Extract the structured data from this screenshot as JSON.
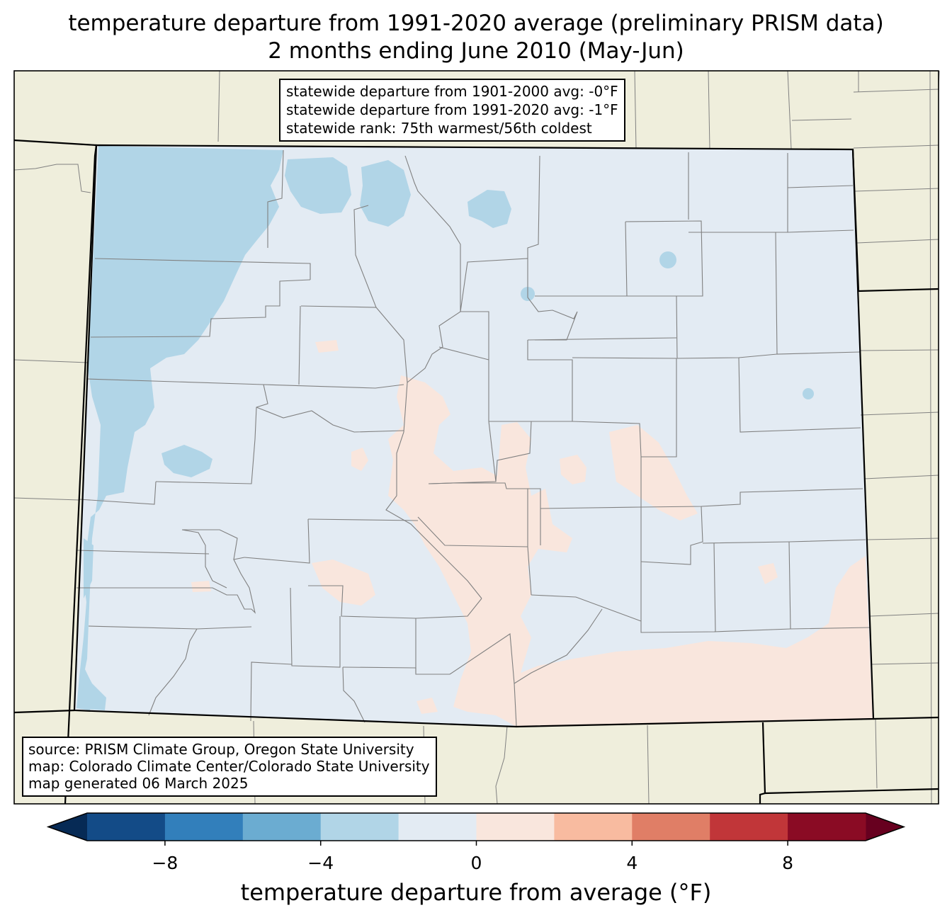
{
  "title": {
    "line1": "temperature departure from 1991-2020 average (preliminary PRISM data)",
    "line2": "2 months ending June 2010 (May-Jun)"
  },
  "stats": {
    "line1": "statewide departure from 1901-2000 avg: -0°F",
    "line2": "statewide departure from 1991-2020 avg: -1°F",
    "line3": "statewide rank: 75th warmest/56th coldest"
  },
  "source": {
    "line1": "source: PRISM Climate Group, Oregon State University",
    "line2": "map: Colorado Climate Center/Colorado State University",
    "line3": "map generated 06 March 2025"
  },
  "colorbar": {
    "label": "temperature departure from average (°F)",
    "ticks": [
      "−8",
      "−4",
      "0",
      "4",
      "8"
    ],
    "tick_values": [
      -8,
      -4,
      0,
      4,
      8
    ],
    "bins": [
      -10,
      -8,
      -6,
      -4,
      -2,
      0,
      2,
      4,
      6,
      8,
      10
    ],
    "colors": [
      "#134b87",
      "#327fbb",
      "#6bacd1",
      "#b1d5e7",
      "#e3ebf3",
      "#f9e6dd",
      "#f8bba0",
      "#e07e66",
      "#c13639",
      "#8a0b24"
    ],
    "under_color": "#062a55",
    "over_color": "#67001f"
  },
  "map": {
    "background_color": "#efeedc",
    "state_fill_color": "#e3ebf3",
    "below_fill_color": "#b1d5e7",
    "above_fill_color": "#f9e6dd"
  }
}
